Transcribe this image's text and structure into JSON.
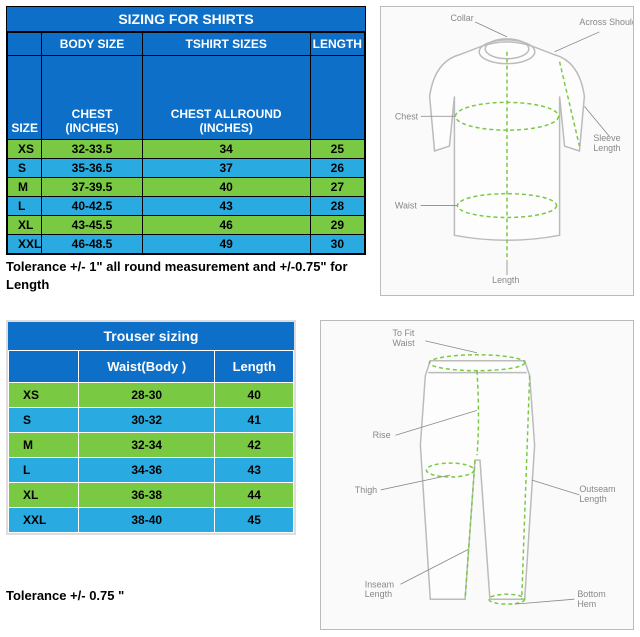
{
  "shirt": {
    "title": "SIZING FOR SHIRTS",
    "group_headers": {
      "blank": "",
      "body": "BODY SIZE",
      "tshirt": "TSHIRT SIZES",
      "length": "LENGTH"
    },
    "headers": {
      "size": "SIZE",
      "chest": "CHEST (INCHES)",
      "allround": "CHEST ALLROUND (INCHES)",
      "length": ""
    },
    "rows": [
      {
        "size": "XS",
        "chest": "32-33.5",
        "allround": "34",
        "length": "25",
        "cls": "row-green"
      },
      {
        "size": "S",
        "chest": "35-36.5",
        "allround": "37",
        "length": "26",
        "cls": "row-blue"
      },
      {
        "size": "M",
        "chest": "37-39.5",
        "allround": "40",
        "length": "27",
        "cls": "row-green"
      },
      {
        "size": "L",
        "chest": "40-42.5",
        "allround": "43",
        "length": "28",
        "cls": "row-blue"
      },
      {
        "size": "XL",
        "chest": "43-45.5",
        "allround": "46",
        "length": "29",
        "cls": "row-green"
      },
      {
        "size": "XXL",
        "chest": "46-48.5",
        "allround": "49",
        "length": "30",
        "cls": "row-blue"
      }
    ],
    "tolerance": "Tolerance +/- 1\" all round measurement and +/-0.75\" for Length",
    "diagram_labels": {
      "collar": "Collar",
      "across": "Across Shoulder",
      "chest": "Chest",
      "sleeve": "Sleeve Length",
      "waist": "Waist",
      "length": "Length"
    }
  },
  "trouser": {
    "title": "Trouser sizing",
    "headers": {
      "blank": "",
      "waist": "Waist(Body )",
      "length": "Length"
    },
    "rows": [
      {
        "size": "XS",
        "waist": "28-30",
        "length": "40",
        "cls": "tr-green"
      },
      {
        "size": "S",
        "waist": "30-32",
        "length": "41",
        "cls": "tr-blue"
      },
      {
        "size": "M",
        "waist": "32-34",
        "length": "42",
        "cls": "tr-green"
      },
      {
        "size": "L",
        "waist": "34-36",
        "length": "43",
        "cls": "tr-blue"
      },
      {
        "size": "XL",
        "waist": "36-38",
        "length": "44",
        "cls": "tr-green"
      },
      {
        "size": "XXL",
        "waist": "38-40",
        "length": "45",
        "cls": "tr-blue"
      }
    ],
    "tolerance": "Tolerance +/- 0.75 \"",
    "diagram_labels": {
      "tofit": "To Fit Waist",
      "rise": "Rise",
      "thigh": "Thigh",
      "outseam": "Outseam Length",
      "inseam": "Inseam Length",
      "hem": "Bottom Hem"
    }
  },
  "colors": {
    "header_bg": "#0d6fc7",
    "green": "#7ac943",
    "blue": "#29abe2"
  }
}
